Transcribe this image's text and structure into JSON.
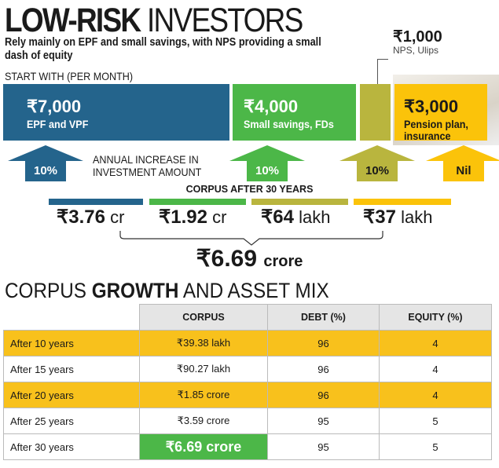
{
  "title": {
    "bold": "LOW-RISK",
    "light": "INVESTORS"
  },
  "subtitle": "Rely mainly on EPF and small savings, with NPS providing a small dash of equity",
  "start_label": "START WITH (PER MONTH)",
  "colors": {
    "epf": "#24648c",
    "small": "#4cb748",
    "nps": "#b9b53e",
    "pension": "#fbc30a"
  },
  "investments": [
    {
      "amount": "₹7,000",
      "label": "EPF and VPF",
      "increase": "10%",
      "corpus_num": "₹3.76",
      "corpus_unit": "cr"
    },
    {
      "amount": "₹4,000",
      "label": "Small savings, FDs",
      "increase": "10%",
      "corpus_num": "₹1.92",
      "corpus_unit": "cr"
    },
    {
      "amount": "₹1,000",
      "label": "NPS, Ulips",
      "increase": "10%",
      "corpus_num": "₹64",
      "corpus_unit": "lakh"
    },
    {
      "amount": "₹3,000",
      "label": "Pension plan, insurance",
      "increase": "Nil",
      "corpus_num": "₹37",
      "corpus_unit": "lakh"
    }
  ],
  "annual_increase_label": "ANNUAL INCREASE IN INVESTMENT AMOUNT",
  "corpus_heading": "CORPUS AFTER 30 YEARS",
  "total": {
    "num": "₹6.69",
    "unit": "crore"
  },
  "section": {
    "a": "CORPUS",
    "b": "GROWTH",
    "c": "AND ASSET MIX"
  },
  "table": {
    "headers": [
      "",
      "CORPUS",
      "DEBT (%)",
      "EQUITY (%)"
    ],
    "rows": [
      [
        "After 10 years",
        "₹39.38 lakh",
        "96",
        "4"
      ],
      [
        "After 15 years",
        "₹90.27 lakh",
        "96",
        "4"
      ],
      [
        "After 20 years",
        "₹1.85 crore",
        "96",
        "4"
      ],
      [
        "After 25 years",
        "₹3.59 crore",
        "95",
        "5"
      ],
      [
        "After 30 years",
        "₹6.69 crore",
        "95",
        "5"
      ]
    ]
  }
}
